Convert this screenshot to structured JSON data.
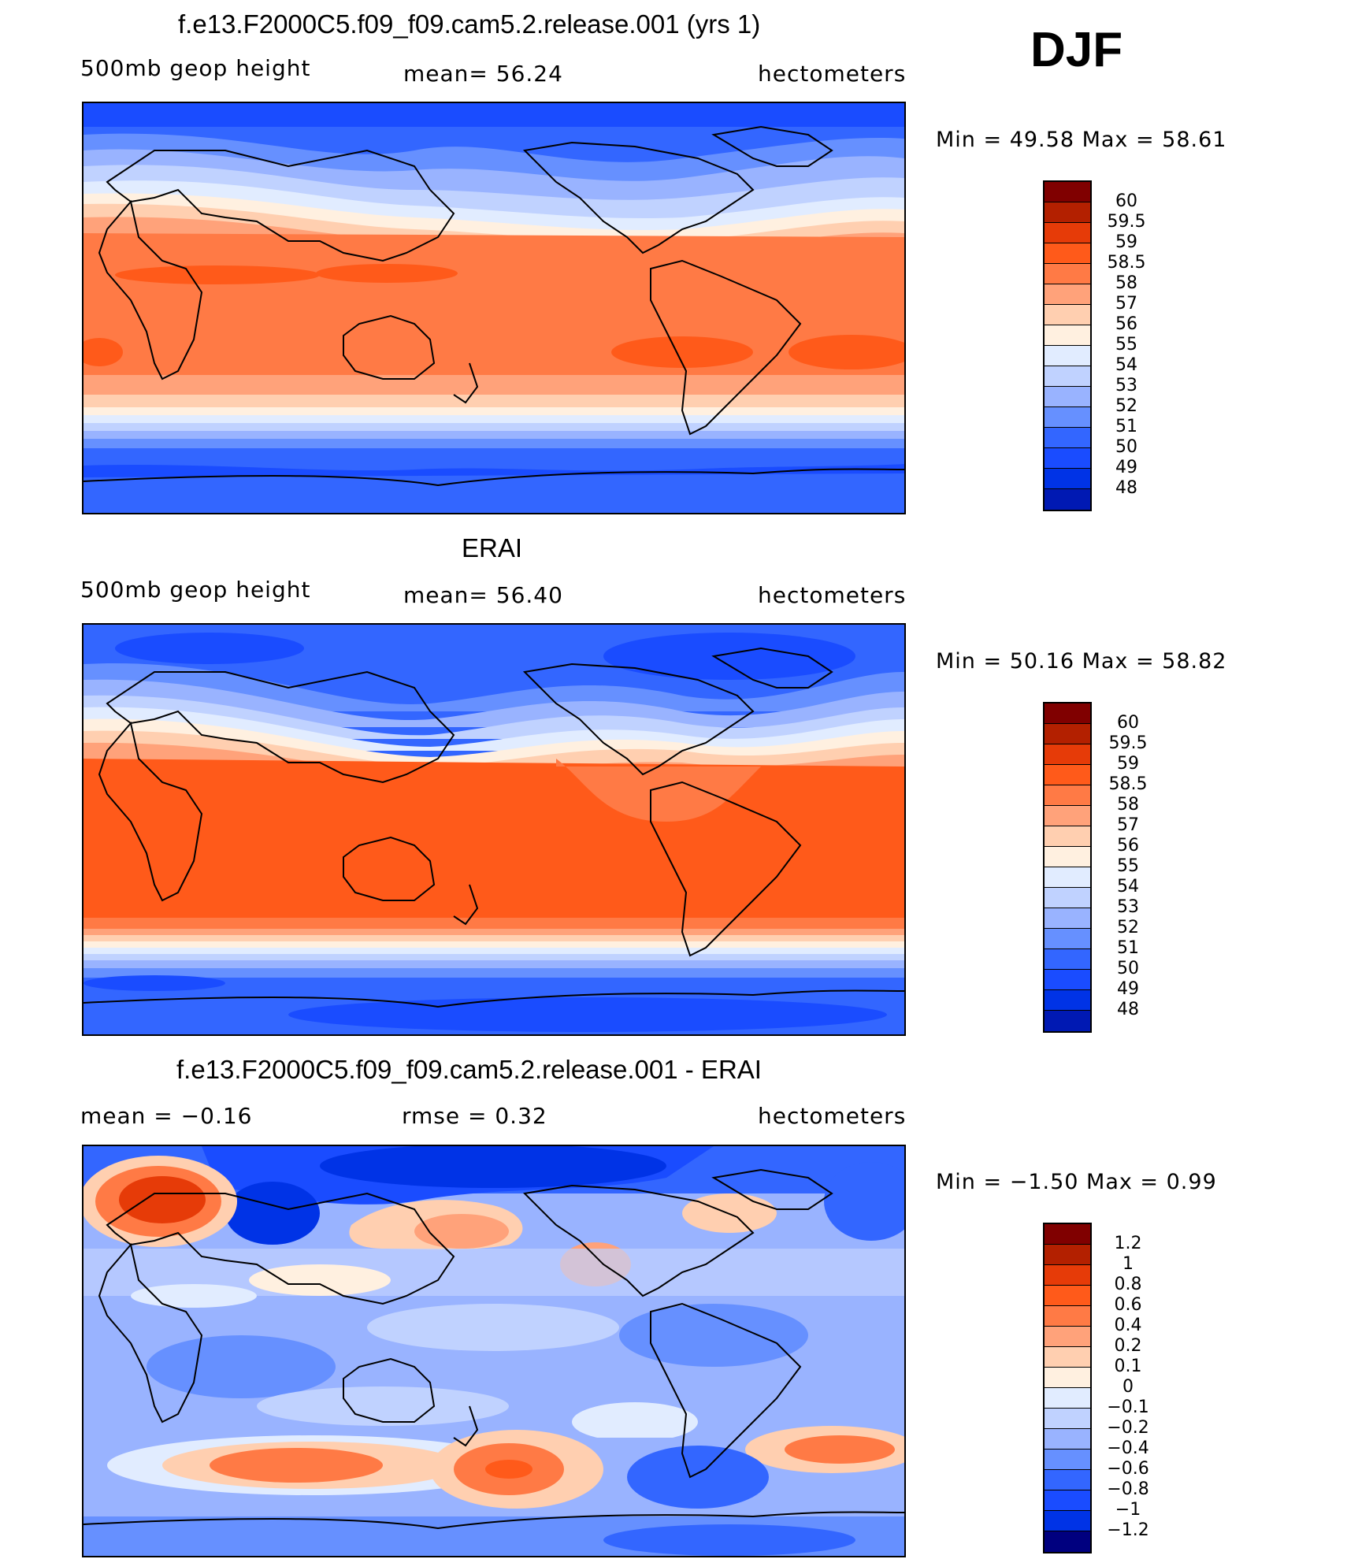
{
  "season": "DJF",
  "panels": [
    {
      "id": "model",
      "title": "f.e13.F2000C5.f09_f09.cam5.2.release.001 (yrs 1)",
      "left_label": "500mb geop height",
      "center_label": "mean=  56.24",
      "right_label": "hectometers",
      "minmax": "Min =   49.58  Max =    58.61",
      "colorbar_labels": [
        "60",
        "59.5",
        "59",
        "58.5",
        "58",
        "57",
        "56",
        "55",
        "54",
        "53",
        "52",
        "51",
        "50",
        "49",
        "48"
      ]
    },
    {
      "id": "obs",
      "title": "ERAI",
      "left_label": "500mb geop height",
      "center_label": "mean=  56.40",
      "right_label": "hectometers",
      "minmax": "Min =   50.16  Max =    58.82",
      "colorbar_labels": [
        "60",
        "59.5",
        "59",
        "58.5",
        "58",
        "57",
        "56",
        "55",
        "54",
        "53",
        "52",
        "51",
        "50",
        "49",
        "48"
      ]
    },
    {
      "id": "diff",
      "title": "f.e13.F2000C5.f09_f09.cam5.2.release.001 - ERAI",
      "left_label": "mean =   −0.16",
      "center_label": "rmse =     0.32",
      "right_label": "hectometers",
      "minmax": "Min =   −1.50  Max =      0.99",
      "colorbar_labels": [
        "1.2",
        "1",
        "0.8",
        "0.6",
        "0.4",
        "0.2",
        "0.1",
        "0",
        "−0.1",
        "−0.2",
        "−0.4",
        "−0.6",
        "−0.8",
        "−1",
        "−1.2"
      ]
    }
  ],
  "colors": {
    "palette": [
      "#00007f",
      "#0019b3",
      "#0033e6",
      "#1a4cff",
      "#3366ff",
      "#6690ff",
      "#99b3ff",
      "#c0d2ff",
      "#e1ecff",
      "#fff0e0",
      "#ffcfb0",
      "#ffa27a",
      "#ff7a45",
      "#ff5a1a",
      "#e63b08",
      "#b32000",
      "#800000"
    ],
    "outline": "#000000"
  },
  "chart_data": [
    {
      "type": "heatmap",
      "title": "f.e13.F2000C5.f09_f09.cam5.2.release.001 (yrs 1)",
      "variable": "500mb geop height",
      "units": "hectometers",
      "mean": 56.24,
      "min": 49.58,
      "max": 58.61,
      "levels": [
        48,
        49,
        50,
        51,
        52,
        53,
        54,
        55,
        56,
        57,
        58,
        58.5,
        59,
        59.5,
        60
      ]
    },
    {
      "type": "heatmap",
      "title": "ERAI",
      "variable": "500mb geop height",
      "units": "hectometers",
      "mean": 56.4,
      "min": 50.16,
      "max": 58.82,
      "levels": [
        48,
        49,
        50,
        51,
        52,
        53,
        54,
        55,
        56,
        57,
        58,
        58.5,
        59,
        59.5,
        60
      ]
    },
    {
      "type": "heatmap",
      "title": "f.e13.F2000C5.f09_f09.cam5.2.release.001 - ERAI",
      "units": "hectometers",
      "mean": -0.16,
      "rmse": 0.32,
      "min": -1.5,
      "max": 0.99,
      "levels": [
        -1.2,
        -1,
        -0.8,
        -0.6,
        -0.4,
        -0.2,
        -0.1,
        0,
        0.1,
        0.2,
        0.4,
        0.6,
        0.8,
        1,
        1.2
      ]
    }
  ]
}
